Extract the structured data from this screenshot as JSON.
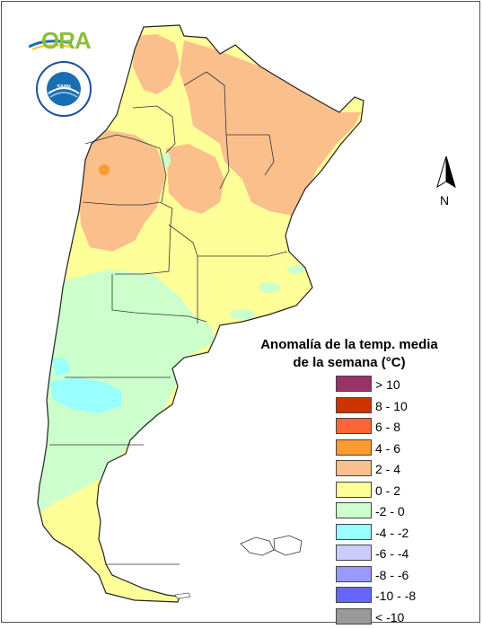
{
  "logos": {
    "ora_text": "ORA",
    "seal_text": "SERVICIO METEOROLÓGICO NACIONAL",
    "seal_bottom_text": "ARGENTINA",
    "seal_center_text": "SMN"
  },
  "compass": {
    "label": "N"
  },
  "legend": {
    "title_line1": "Anomalía de la temp. media",
    "title_line2": "de la semana (°C)",
    "items": [
      {
        "label": "> 10",
        "color": "#993366"
      },
      {
        "label": "8 - 10",
        "color": "#cc3300"
      },
      {
        "label": "6 - 8",
        "color": "#ff6633"
      },
      {
        "label": "4 - 6",
        "color": "#ff9933"
      },
      {
        "label": "2 - 4",
        "color": "#fbbf8c"
      },
      {
        "label": "0 - 2",
        "color": "#ffff99"
      },
      {
        "label": "-2 - 0",
        "color": "#ccffcc"
      },
      {
        "label": "-4 - -2",
        "color": "#99ffff"
      },
      {
        "label": "-6 - -4",
        "color": "#ccccff"
      },
      {
        "label": "-8 - -6",
        "color": "#9999ff"
      },
      {
        "label": "-10 - -8",
        "color": "#6666ff"
      },
      {
        "label": "< -10",
        "color": "#999999"
      }
    ]
  },
  "map_colors": {
    "warm": "#fbbf8c",
    "hot": "#ff9933",
    "neutral_warm": "#ffff99",
    "neutral_cool": "#ccffcc",
    "cool": "#99ffff"
  }
}
